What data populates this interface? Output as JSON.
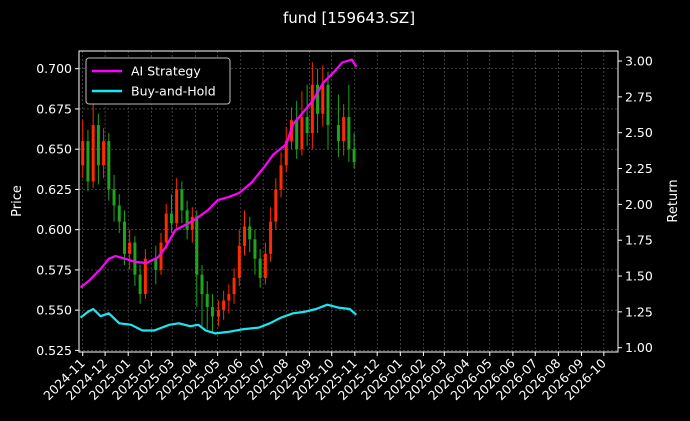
{
  "chart_data": {
    "type": "line",
    "title": "fund [159643.SZ]",
    "ylabel_left": "Price",
    "ylabel_right": "Return",
    "x_ticks": [
      "2024-11",
      "2024-12",
      "2025-01",
      "2025-02",
      "2025-03",
      "2025-04",
      "2025-05",
      "2025-06",
      "2025-07",
      "2025-08",
      "2025-09",
      "2025-10",
      "2025-11",
      "2025-12",
      "2026-01",
      "2026-02",
      "2026-03",
      "2026-04",
      "2026-05",
      "2026-06",
      "2026-07",
      "2026-08",
      "2026-09",
      "2026-10"
    ],
    "x_range": [
      "2024-10-27",
      "2026-10-20"
    ],
    "y_left": {
      "ticks": [
        "0.525",
        "0.550",
        "0.575",
        "0.600",
        "0.625",
        "0.650",
        "0.675",
        "0.700"
      ],
      "ylim": [
        0.524,
        0.711
      ]
    },
    "y_right": {
      "ticks": [
        "1.00",
        "1.25",
        "1.50",
        "1.75",
        "2.00",
        "2.25",
        "2.50",
        "2.75",
        "3.00"
      ],
      "ylim": [
        0.97,
        3.07
      ]
    },
    "grid": true,
    "legend": "top-left",
    "price_candles_color_up": "#ff2a00",
    "price_candles_color_down": "#1ea51e",
    "price_candles": [
      {
        "x": "2024-11-01",
        "o": 0.64,
        "c": 0.655,
        "h": 0.668,
        "l": 0.632
      },
      {
        "x": "2024-11-08",
        "o": 0.655,
        "c": 0.63,
        "h": 0.662,
        "l": 0.624
      },
      {
        "x": "2024-11-15",
        "o": 0.63,
        "c": 0.665,
        "h": 0.684,
        "l": 0.626
      },
      {
        "x": "2024-11-22",
        "o": 0.665,
        "c": 0.64,
        "h": 0.672,
        "l": 0.628
      },
      {
        "x": "2024-11-29",
        "o": 0.64,
        "c": 0.655,
        "h": 0.663,
        "l": 0.632
      },
      {
        "x": "2024-12-06",
        "o": 0.655,
        "c": 0.625,
        "h": 0.66,
        "l": 0.618
      },
      {
        "x": "2024-12-13",
        "o": 0.625,
        "c": 0.615,
        "h": 0.634,
        "l": 0.605
      },
      {
        "x": "2024-12-20",
        "o": 0.615,
        "c": 0.605,
        "h": 0.622,
        "l": 0.598
      },
      {
        "x": "2024-12-27",
        "o": 0.605,
        "c": 0.585,
        "h": 0.612,
        "l": 0.578
      },
      {
        "x": "2025-01-03",
        "o": 0.585,
        "c": 0.592,
        "h": 0.6,
        "l": 0.575
      },
      {
        "x": "2025-01-10",
        "o": 0.592,
        "c": 0.572,
        "h": 0.596,
        "l": 0.565
      },
      {
        "x": "2025-01-17",
        "o": 0.572,
        "c": 0.56,
        "h": 0.578,
        "l": 0.554
      },
      {
        "x": "2025-01-24",
        "o": 0.56,
        "c": 0.582,
        "h": 0.588,
        "l": 0.557
      },
      {
        "x": "2025-02-07",
        "o": 0.582,
        "c": 0.575,
        "h": 0.59,
        "l": 0.566
      },
      {
        "x": "2025-02-14",
        "o": 0.575,
        "c": 0.592,
        "h": 0.598,
        "l": 0.572
      },
      {
        "x": "2025-02-21",
        "o": 0.592,
        "c": 0.61,
        "h": 0.616,
        "l": 0.588
      },
      {
        "x": "2025-02-28",
        "o": 0.61,
        "c": 0.604,
        "h": 0.622,
        "l": 0.598
      },
      {
        "x": "2025-03-07",
        "o": 0.604,
        "c": 0.625,
        "h": 0.632,
        "l": 0.6
      },
      {
        "x": "2025-03-14",
        "o": 0.625,
        "c": 0.612,
        "h": 0.63,
        "l": 0.604
      },
      {
        "x": "2025-03-21",
        "o": 0.612,
        "c": 0.6,
        "h": 0.618,
        "l": 0.594
      },
      {
        "x": "2025-03-28",
        "o": 0.6,
        "c": 0.608,
        "h": 0.614,
        "l": 0.592
      },
      {
        "x": "2025-04-03",
        "o": 0.608,
        "c": 0.572,
        "h": 0.612,
        "l": 0.552
      },
      {
        "x": "2025-04-10",
        "o": 0.572,
        "c": 0.56,
        "h": 0.578,
        "l": 0.54
      },
      {
        "x": "2025-04-17",
        "o": 0.56,
        "c": 0.552,
        "h": 0.568,
        "l": 0.538
      },
      {
        "x": "2025-04-24",
        "o": 0.552,
        "c": 0.546,
        "h": 0.56,
        "l": 0.536
      },
      {
        "x": "2025-05-02",
        "o": 0.546,
        "c": 0.55,
        "h": 0.556,
        "l": 0.54
      },
      {
        "x": "2025-05-09",
        "o": 0.55,
        "c": 0.556,
        "h": 0.562,
        "l": 0.544
      },
      {
        "x": "2025-05-16",
        "o": 0.556,
        "c": 0.56,
        "h": 0.566,
        "l": 0.548
      },
      {
        "x": "2025-05-23",
        "o": 0.56,
        "c": 0.57,
        "h": 0.576,
        "l": 0.554
      },
      {
        "x": "2025-05-30",
        "o": 0.57,
        "c": 0.59,
        "h": 0.6,
        "l": 0.565
      },
      {
        "x": "2025-06-06",
        "o": 0.59,
        "c": 0.602,
        "h": 0.612,
        "l": 0.584
      },
      {
        "x": "2025-06-13",
        "o": 0.602,
        "c": 0.594,
        "h": 0.608,
        "l": 0.586
      },
      {
        "x": "2025-06-20",
        "o": 0.594,
        "c": 0.582,
        "h": 0.6,
        "l": 0.572
      },
      {
        "x": "2025-06-27",
        "o": 0.582,
        "c": 0.57,
        "h": 0.588,
        "l": 0.564
      },
      {
        "x": "2025-07-04",
        "o": 0.57,
        "c": 0.585,
        "h": 0.592,
        "l": 0.566
      },
      {
        "x": "2025-07-11",
        "o": 0.585,
        "c": 0.605,
        "h": 0.614,
        "l": 0.58
      },
      {
        "x": "2025-07-18",
        "o": 0.605,
        "c": 0.625,
        "h": 0.632,
        "l": 0.6
      },
      {
        "x": "2025-07-25",
        "o": 0.625,
        "c": 0.64,
        "h": 0.648,
        "l": 0.62
      },
      {
        "x": "2025-08-01",
        "o": 0.64,
        "c": 0.655,
        "h": 0.664,
        "l": 0.636
      },
      {
        "x": "2025-08-08",
        "o": 0.655,
        "c": 0.668,
        "h": 0.676,
        "l": 0.65
      },
      {
        "x": "2025-08-15",
        "o": 0.668,
        "c": 0.65,
        "h": 0.68,
        "l": 0.644
      },
      {
        "x": "2025-08-22",
        "o": 0.65,
        "c": 0.67,
        "h": 0.686,
        "l": 0.646
      },
      {
        "x": "2025-08-29",
        "o": 0.67,
        "c": 0.66,
        "h": 0.69,
        "l": 0.652
      },
      {
        "x": "2025-09-05",
        "o": 0.66,
        "c": 0.69,
        "h": 0.704,
        "l": 0.65
      },
      {
        "x": "2025-09-12",
        "o": 0.69,
        "c": 0.672,
        "h": 0.7,
        "l": 0.66
      },
      {
        "x": "2025-09-19",
        "o": 0.672,
        "c": 0.69,
        "h": 0.702,
        "l": 0.664
      },
      {
        "x": "2025-09-26",
        "o": 0.69,
        "c": 0.665,
        "h": 0.698,
        "l": 0.65
      },
      {
        "x": "2025-10-10",
        "o": 0.665,
        "c": 0.655,
        "h": 0.684,
        "l": 0.645
      },
      {
        "x": "2025-10-17",
        "o": 0.655,
        "c": 0.67,
        "h": 0.678,
        "l": 0.646
      },
      {
        "x": "2025-10-24",
        "o": 0.67,
        "c": 0.65,
        "h": 0.69,
        "l": 0.642
      },
      {
        "x": "2025-10-31",
        "o": 0.65,
        "c": 0.642,
        "h": 0.66,
        "l": 0.638
      }
    ],
    "series": [
      {
        "name": "AI Strategy",
        "color": "#ff00ff",
        "axis": "right",
        "points": [
          [
            "2024-10-29",
            1.42
          ],
          [
            "2024-11-10",
            1.47
          ],
          [
            "2024-11-25",
            1.55
          ],
          [
            "2024-12-06",
            1.62
          ],
          [
            "2024-12-15",
            1.64
          ],
          [
            "2024-12-28",
            1.62
          ],
          [
            "2025-01-10",
            1.6
          ],
          [
            "2025-01-25",
            1.59
          ],
          [
            "2025-02-10",
            1.63
          ],
          [
            "2025-02-20",
            1.7
          ],
          [
            "2025-03-05",
            1.82
          ],
          [
            "2025-03-20",
            1.86
          ],
          [
            "2025-04-02",
            1.9
          ],
          [
            "2025-04-18",
            1.96
          ],
          [
            "2025-05-01",
            2.03
          ],
          [
            "2025-05-15",
            2.05
          ],
          [
            "2025-05-30",
            2.08
          ],
          [
            "2025-06-15",
            2.15
          ],
          [
            "2025-07-01",
            2.25
          ],
          [
            "2025-07-15",
            2.35
          ],
          [
            "2025-08-01",
            2.42
          ],
          [
            "2025-08-10",
            2.56
          ],
          [
            "2025-08-25",
            2.65
          ],
          [
            "2025-09-05",
            2.72
          ],
          [
            "2025-09-20",
            2.85
          ],
          [
            "2025-10-05",
            2.93
          ],
          [
            "2025-10-15",
            2.99
          ],
          [
            "2025-10-28",
            3.01
          ],
          [
            "2025-11-03",
            2.96
          ]
        ]
      },
      {
        "name": "Buy-and-Hold",
        "color": "#19e8f0",
        "axis": "right",
        "points": [
          [
            "2024-10-29",
            1.21
          ],
          [
            "2024-11-08",
            1.25
          ],
          [
            "2024-11-15",
            1.27
          ],
          [
            "2024-11-25",
            1.22
          ],
          [
            "2024-12-06",
            1.24
          ],
          [
            "2024-12-20",
            1.17
          ],
          [
            "2025-01-05",
            1.16
          ],
          [
            "2025-01-20",
            1.12
          ],
          [
            "2025-02-05",
            1.12
          ],
          [
            "2025-02-25",
            1.16
          ],
          [
            "2025-03-10",
            1.17
          ],
          [
            "2025-03-25",
            1.15
          ],
          [
            "2025-04-05",
            1.16
          ],
          [
            "2025-04-15",
            1.12
          ],
          [
            "2025-04-28",
            1.1
          ],
          [
            "2025-05-15",
            1.11
          ],
          [
            "2025-06-05",
            1.13
          ],
          [
            "2025-06-25",
            1.14
          ],
          [
            "2025-07-10",
            1.17
          ],
          [
            "2025-07-25",
            1.21
          ],
          [
            "2025-08-10",
            1.24
          ],
          [
            "2025-08-25",
            1.25
          ],
          [
            "2025-09-10",
            1.27
          ],
          [
            "2025-09-25",
            1.3
          ],
          [
            "2025-10-10",
            1.28
          ],
          [
            "2025-10-25",
            1.27
          ],
          [
            "2025-11-03",
            1.23
          ]
        ]
      }
    ]
  }
}
